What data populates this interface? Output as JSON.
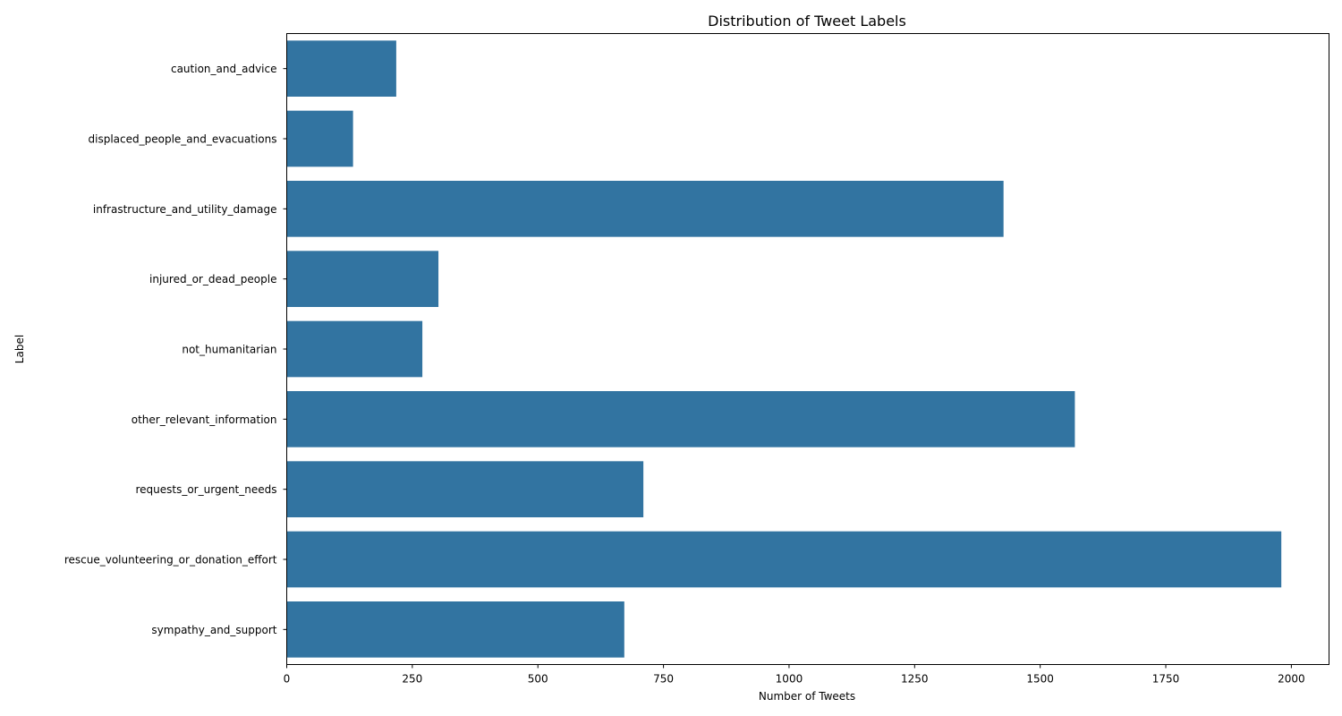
{
  "chart_data": {
    "type": "bar",
    "orientation": "horizontal",
    "title": "Distribution of Tweet Labels",
    "xlabel": "Number of Tweets",
    "ylabel": "Label",
    "categories": [
      "caution_and_advice",
      "displaced_people_and_evacuations",
      "infrastructure_and_utility_damage",
      "injured_or_dead_people",
      "not_humanitarian",
      "other_relevant_information",
      "requests_or_urgent_needs",
      "rescue_volunteering_or_donation_effort",
      "sympathy_and_support"
    ],
    "values": [
      218,
      132,
      1427,
      302,
      270,
      1569,
      710,
      1980,
      672
    ],
    "xlim": [
      0,
      2075
    ],
    "xticks": [
      0,
      250,
      500,
      750,
      1000,
      1250,
      1500,
      1750,
      2000
    ],
    "grid": false,
    "legend": "none",
    "bar_color": "#3274a1"
  }
}
